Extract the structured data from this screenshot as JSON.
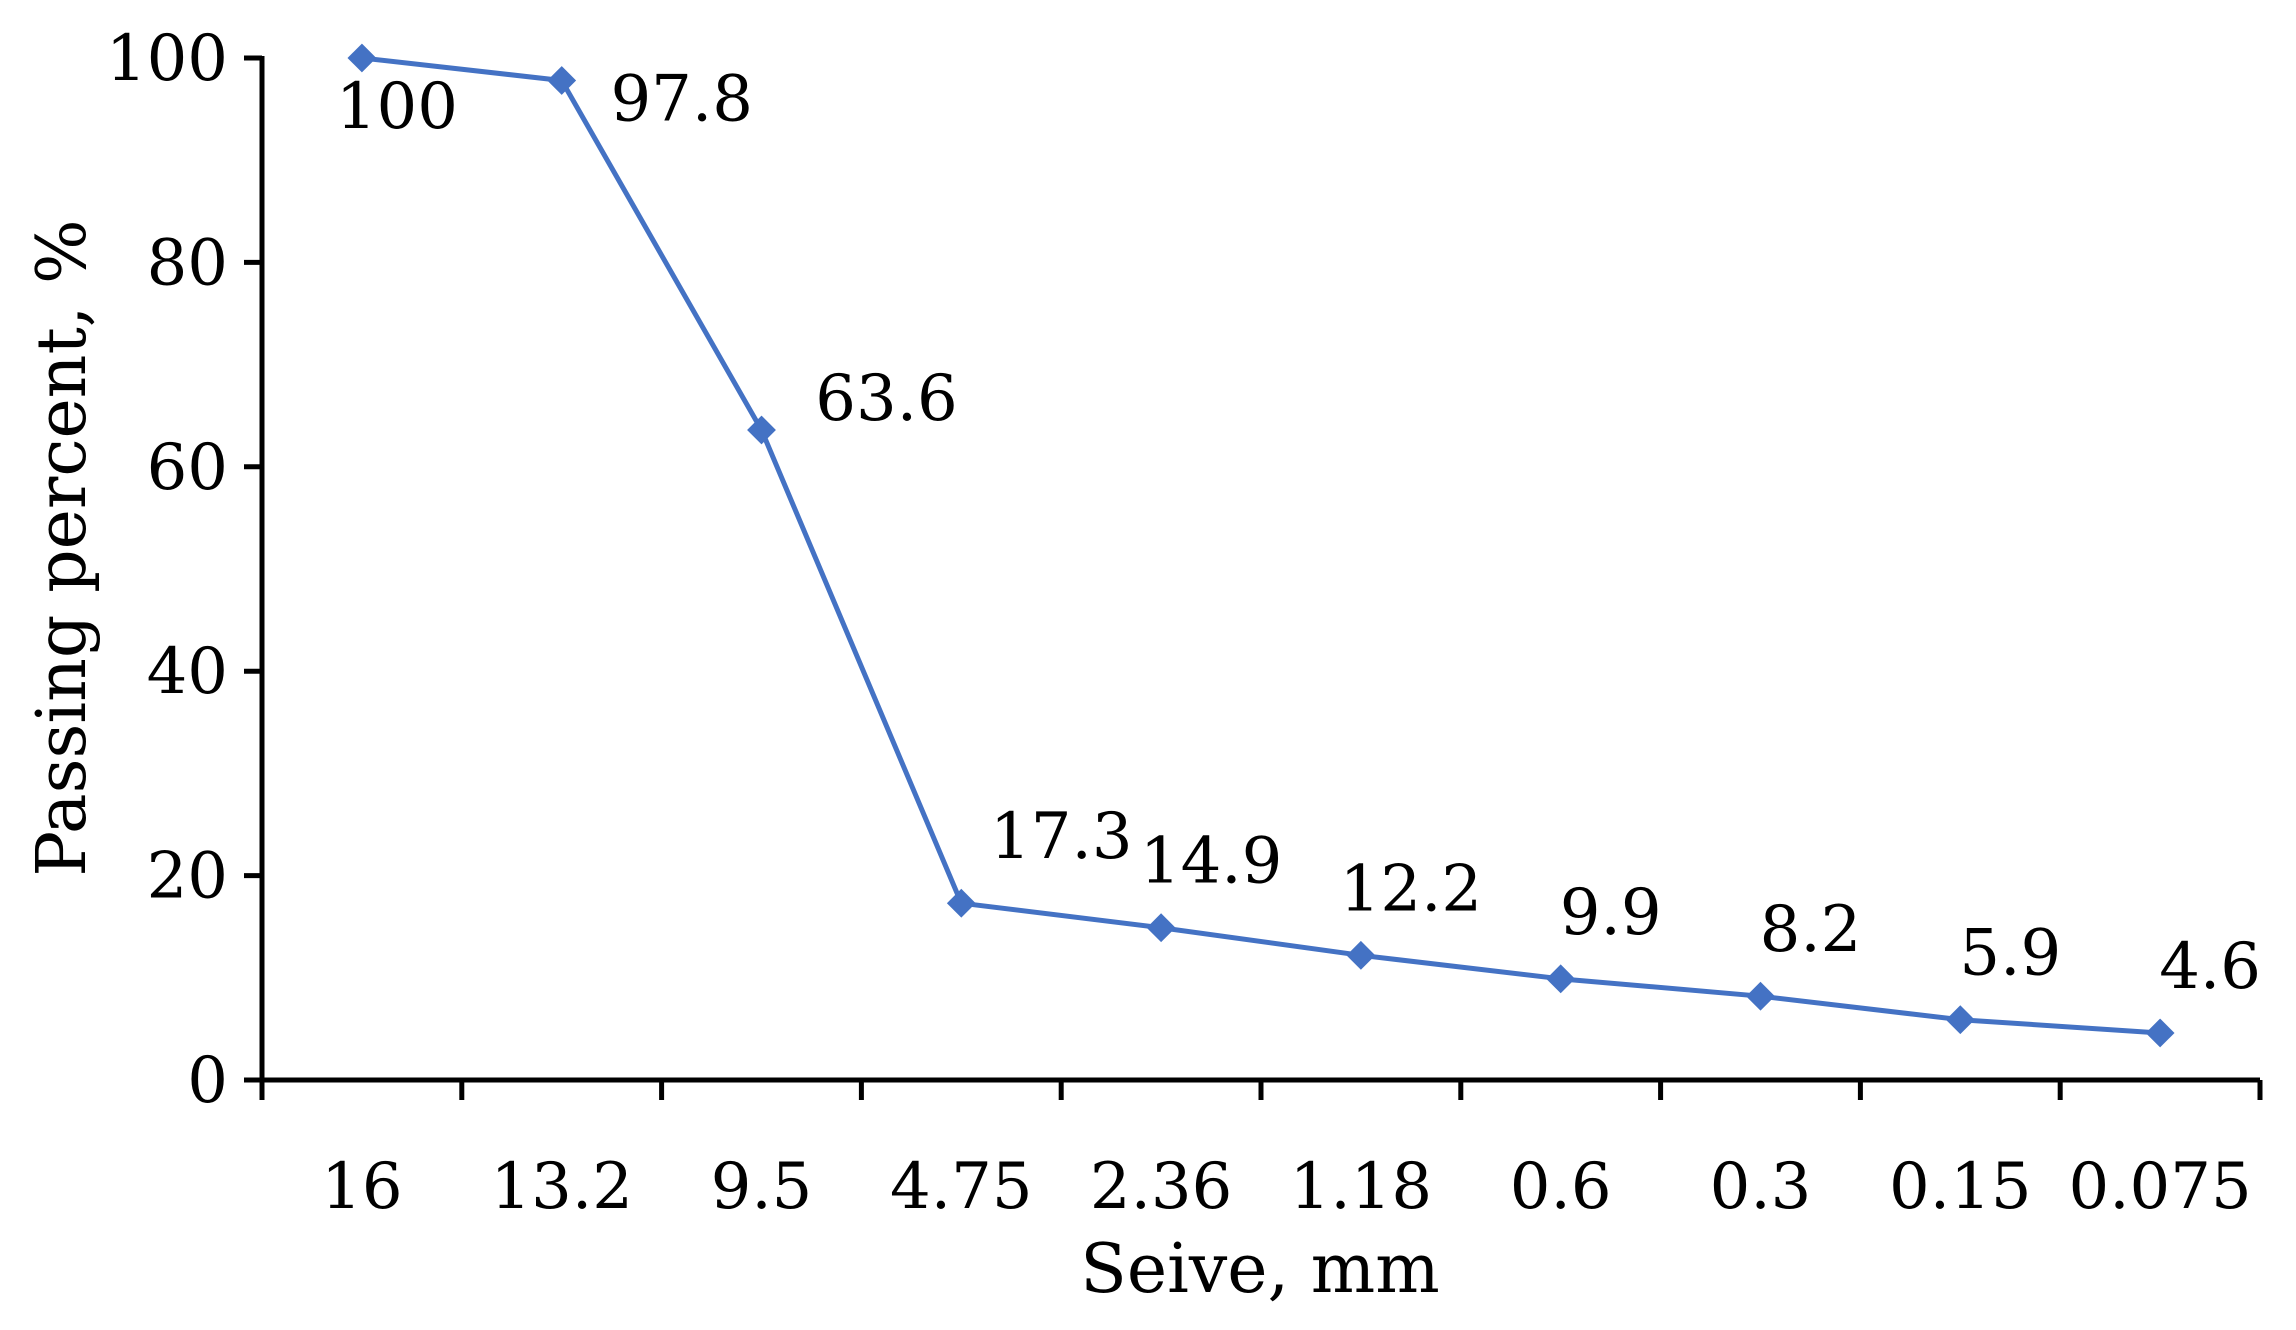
{
  "chart_data": {
    "type": "line",
    "title": "",
    "xlabel": "Seive, mm",
    "ylabel": "Passing percent, %",
    "categories": [
      "16",
      "13.2",
      "9.5",
      "4.75",
      "2.36",
      "1.18",
      "0.6",
      "0.3",
      "0.15",
      "0.075"
    ],
    "series": [
      {
        "name": "Passing percent",
        "values": [
          100,
          97.8,
          63.6,
          17.3,
          14.9,
          12.2,
          9.9,
          8.2,
          5.9,
          4.6
        ],
        "data_labels": [
          "100",
          "97.8",
          "63.6",
          "17.3",
          "14.9",
          "12.2",
          "9.9",
          "8.2",
          "5.9",
          "4.6"
        ]
      }
    ],
    "ylim": [
      0,
      100
    ],
    "yticks": [
      0,
      20,
      40,
      60,
      80,
      100
    ],
    "ytick_labels": [
      "0",
      "20",
      "40",
      "60",
      "80",
      "100"
    ],
    "grid": false,
    "legend": "none",
    "colors": {
      "series": "#4472C4",
      "axis": "#000000"
    }
  }
}
